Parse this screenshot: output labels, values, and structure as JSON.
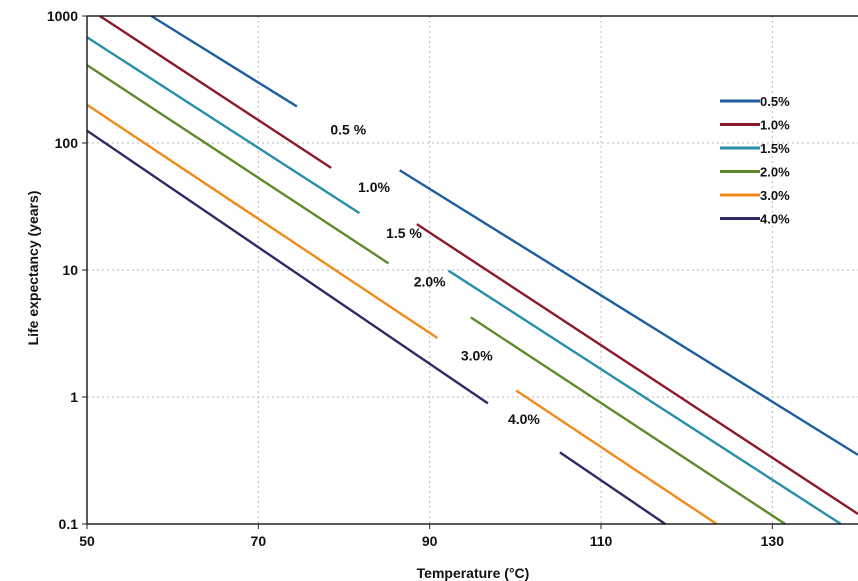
{
  "chart_data": {
    "type": "line",
    "title": "",
    "xlabel": "Temperature (°C)",
    "ylabel": "Life expectancy (years)",
    "xlim": [
      50,
      140
    ],
    "ylim": [
      0.1,
      1000
    ],
    "y_scale": "log",
    "x_ticks": [
      50,
      70,
      90,
      110,
      130
    ],
    "x_tick_labels": [
      "50",
      "70",
      "90",
      "110",
      "130"
    ],
    "y_ticks": [
      0.1,
      1,
      10,
      100,
      1000
    ],
    "y_tick_labels": [
      "0.1",
      "1",
      "10",
      "100",
      "1000"
    ],
    "grid": true,
    "legend_position": "right",
    "series": [
      {
        "name": "0.5%",
        "inline_label": "0.5 %",
        "color": "#1f5f9e",
        "points": [
          [
            57.5,
            1000
          ],
          [
            140,
            0.35
          ]
        ]
      },
      {
        "name": "1.0%",
        "inline_label": "1.0%",
        "color": "#8b1a2a",
        "points": [
          [
            51.5,
            1000
          ],
          [
            140,
            0.12
          ]
        ]
      },
      {
        "name": "1.5%",
        "inline_label": "1.5 %",
        "color": "#2a8fa8",
        "points": [
          [
            50,
            680
          ],
          [
            138,
            0.1
          ]
        ]
      },
      {
        "name": "2.0%",
        "inline_label": "2.0%",
        "color": "#5f8a2e",
        "points": [
          [
            50,
            410
          ],
          [
            131.5,
            0.1
          ]
        ]
      },
      {
        "name": "3.0%",
        "inline_label": "3.0%",
        "color": "#f08a1c",
        "points": [
          [
            50,
            200
          ],
          [
            123.5,
            0.1
          ]
        ]
      },
      {
        "name": "4.0%",
        "inline_label": "4.0%",
        "color": "#2e2a66",
        "points": [
          [
            50,
            125
          ],
          [
            117.5,
            0.1
          ]
        ]
      }
    ]
  }
}
